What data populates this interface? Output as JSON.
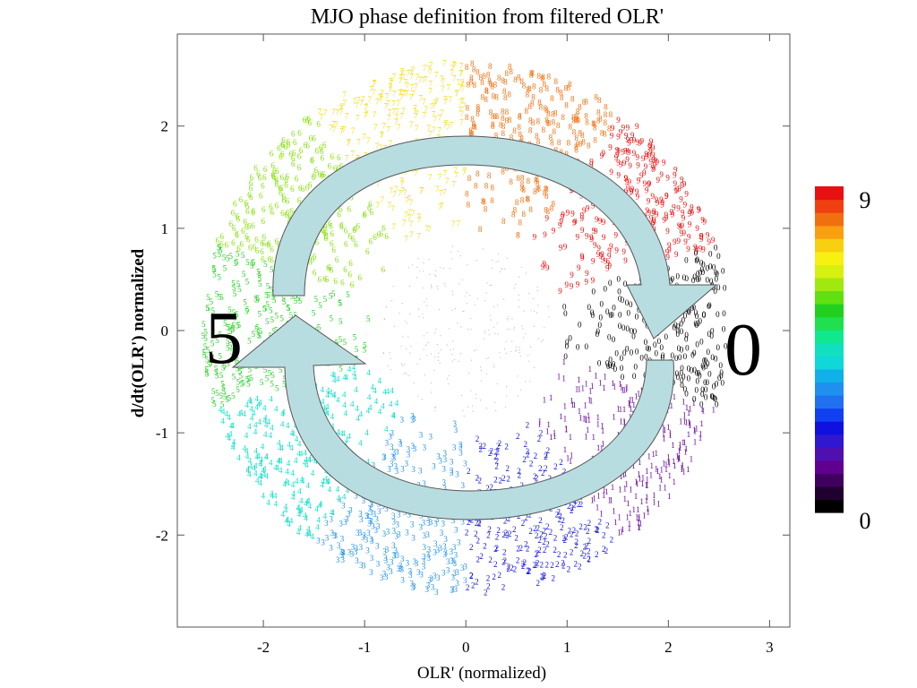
{
  "chart_data": {
    "type": "scatter",
    "title": "MJO phase definition from filtered OLR'",
    "xlabel": "OLR' (normalized)",
    "ylabel": "d/dt(OLR') normalized",
    "xlim": [
      -2.85,
      3.2
    ],
    "ylim": [
      -2.9,
      2.9
    ],
    "xticks": [
      -2,
      -1,
      0,
      1,
      2,
      3
    ],
    "yticks": [
      -2,
      -1,
      0,
      1,
      2
    ],
    "grid": false,
    "points_note_ring": [
      0.9,
      2.6
    ],
    "phases": [
      {
        "phase": 0,
        "color": "#000000",
        "center_angle_deg": 0
      },
      {
        "phase": 1,
        "color": "#6a0aa0",
        "center_angle_deg": -36
      },
      {
        "phase": 2,
        "color": "#1010e0",
        "center_angle_deg": -72
      },
      {
        "phase": 3,
        "color": "#2090ee",
        "center_angle_deg": -108
      },
      {
        "phase": 4,
        "color": "#10e0c8",
        "center_angle_deg": -144
      },
      {
        "phase": 5,
        "color": "#22d020",
        "center_angle_deg": 180
      },
      {
        "phase": 6,
        "color": "#88e010",
        "center_angle_deg": 144
      },
      {
        "phase": 7,
        "color": "#f0dc10",
        "center_angle_deg": 108
      },
      {
        "phase": 8,
        "color": "#f07010",
        "center_angle_deg": 72
      },
      {
        "phase": 9,
        "color": "#e81010",
        "center_angle_deg": 36
      }
    ],
    "colorbar": {
      "min_label": "0",
      "max_label": "9",
      "colors": [
        "#000000",
        "#200030",
        "#400060",
        "#600090",
        "#5010b0",
        "#3018d0",
        "#1010e0",
        "#1040f0",
        "#2070f0",
        "#2090ee",
        "#10b0e8",
        "#10d8d8",
        "#10e0c0",
        "#10e890",
        "#20e050",
        "#22d020",
        "#60e010",
        "#a0e810",
        "#d8f010",
        "#f8f010",
        "#f8d010",
        "#f8a010",
        "#f07010",
        "#f04010",
        "#e81010"
      ]
    },
    "annotations": {
      "left_label": "5",
      "right_label": "0"
    }
  }
}
